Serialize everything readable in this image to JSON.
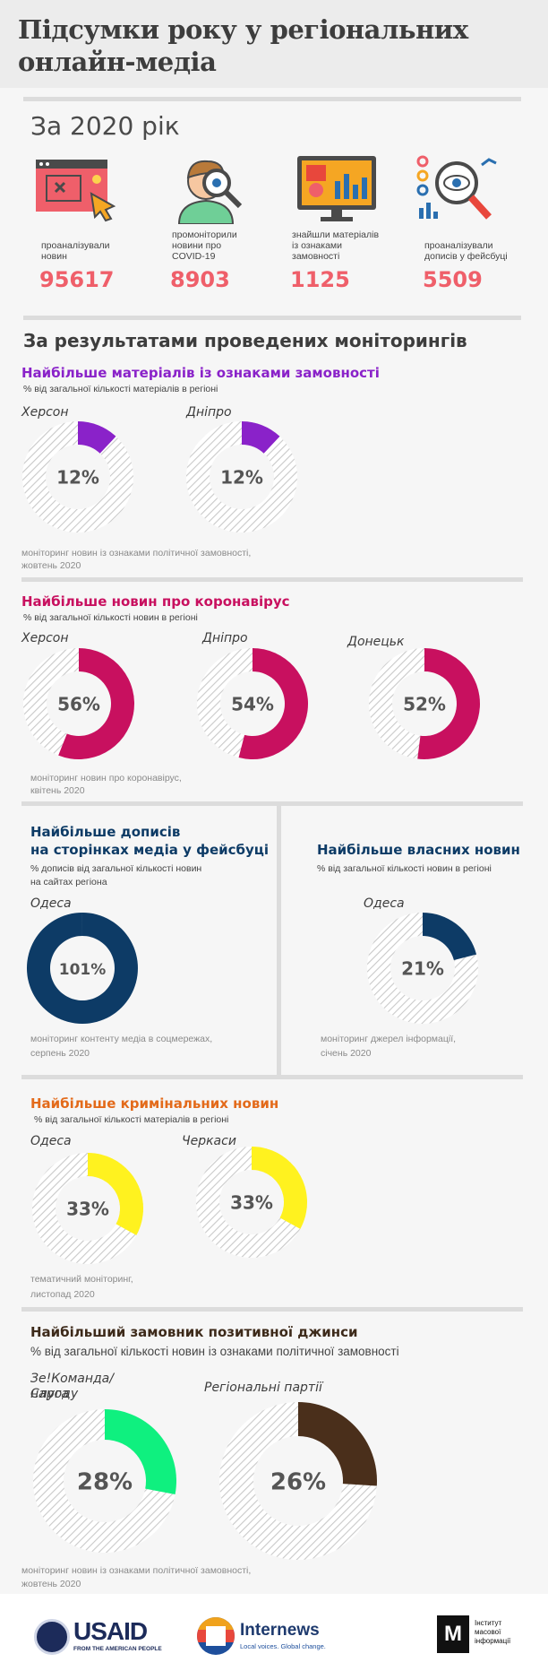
{
  "header": {
    "title_line1": "Підсумки року у регіональних",
    "title_line2": "онлайн-медіа"
  },
  "year_block": {
    "heading": "За 2020 рік",
    "stats": [
      {
        "icon": "browser-cursor-icon",
        "label_lines": [
          "проаналізували",
          "новин"
        ],
        "value": "95617"
      },
      {
        "icon": "magnifier-person-icon",
        "label_lines": [
          "промоніторили",
          "новини про",
          "COVID-19"
        ],
        "value": "8903"
      },
      {
        "icon": "monitor-chart-icon",
        "label_lines": [
          "знайшли матеріалів",
          "із ознаками",
          "замовності"
        ],
        "value": "1125"
      },
      {
        "icon": "analytics-magnifier-icon",
        "label_lines": [
          "проаналізували",
          "дописів у фейсбуці"
        ],
        "value": "5509"
      }
    ]
  },
  "results_heading": "За результатами  проведених моніторингів",
  "sections": {
    "paid": {
      "heading": "Найбільше матеріалів із ознаками замовності",
      "note": "% від загальної кількості матеріалів в регіоні",
      "source_lines": [
        "моніторинг новин із ознаками політичної замовності,",
        "жовтень 2020"
      ],
      "color": "#8a22c9"
    },
    "covid": {
      "heading": "Найбільше новин про коронавірус",
      "note": "% від загальної кількості новин в регіоні",
      "source_lines": [
        "моніторинг новин про коронавірус,",
        "квітень 2020"
      ],
      "color": "#c8105f"
    },
    "facebook": {
      "heading_lines": [
        "Найбільше дописів",
        "на сторінках медіа у фейсбуці"
      ],
      "note_lines": [
        "% дописів від загальної кількості новин",
        "на сайтах регіона"
      ],
      "source_lines": [
        "моніторинг контенту медіа в соцмережах,",
        "серпень 2020"
      ],
      "color": "#0d3b66"
    },
    "own": {
      "heading": "Найбільше власних новин",
      "note": "% від загальної кількості новин в регіоні",
      "source_lines": [
        "моніторинг джерел інформації,",
        "січень 2020"
      ],
      "color": "#0d3b66"
    },
    "crime": {
      "heading": "Найбільше кримінальних новин",
      "note": "% від загальної кількості матеріалів в регіоні",
      "source_lines": [
        "тематичний моніторинг,",
        "листопад 2020"
      ],
      "color": "#e36a1a"
    },
    "jeansa": {
      "heading": "Найбільший замовник позитивної джинси",
      "note": "% від загальної кількості новин із ознаками політичної замовності",
      "source_lines": [
        "моніторинг новин із ознаками політичної замовності,",
        "жовтень 2020"
      ],
      "color": "#3d2a1a"
    }
  },
  "chart_data": [
    {
      "type": "pie",
      "title": "Найбільше матеріалів із ознаками замовності",
      "categories": [
        "Херсон",
        "Дніпро"
      ],
      "values": [
        12,
        12
      ],
      "unit": "%",
      "color": "#8a22c9"
    },
    {
      "type": "pie",
      "title": "Найбільше новин про коронавірус",
      "categories": [
        "Херсон",
        "Дніпро",
        "Донецьк"
      ],
      "values": [
        56,
        54,
        52
      ],
      "unit": "%",
      "color": "#c8105f"
    },
    {
      "type": "pie",
      "title": "Найбільше дописів на сторінках медіа у фейсбуці",
      "categories": [
        "Одеса"
      ],
      "values": [
        101
      ],
      "unit": "%",
      "color": "#0d3b66"
    },
    {
      "type": "pie",
      "title": "Найбільше власних новин",
      "categories": [
        "Одеса"
      ],
      "values": [
        21
      ],
      "unit": "%",
      "color": "#0d3b66"
    },
    {
      "type": "pie",
      "title": "Найбільше кримінальних новин",
      "categories": [
        "Одеса",
        "Черкаси"
      ],
      "values": [
        33,
        33
      ],
      "unit": "%",
      "color": "#fff21f"
    },
    {
      "type": "pie",
      "title": "Найбільший замовник позитивної джинси",
      "categories": [
        "Зе!Команда/ Слуга народу",
        "Регіональні партії"
      ],
      "values": [
        28,
        26
      ],
      "unit": "%",
      "colors": [
        "#0ff07f",
        "#4a2f1b"
      ]
    }
  ],
  "footer": {
    "usaid_name": "USAID",
    "usaid_tagline": "FROM THE AMERICAN PEOPLE",
    "internews_name": "Internews",
    "internews_tagline": "Local voices. Global change.",
    "imi_lines": [
      "Інститут",
      "масової",
      "інформації"
    ],
    "imi_mark": "М"
  }
}
